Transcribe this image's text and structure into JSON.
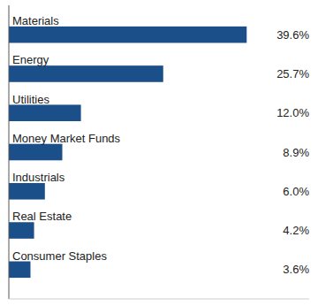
{
  "chart_data": {
    "type": "bar",
    "orientation": "horizontal",
    "categories": [
      "Materials",
      "Energy",
      "Utilities",
      "Money Market Funds",
      "Industrials",
      "Real Estate",
      "Consumer Staples"
    ],
    "values": [
      39.6,
      25.7,
      12.0,
      8.9,
      6.0,
      4.2,
      3.6
    ],
    "value_labels": [
      "39.6%",
      "25.7%",
      "12.0%",
      "8.9%",
      "6.0%",
      "4.2%",
      "3.6%"
    ],
    "color": "#1a4f8a",
    "xlim": [
      0,
      50
    ],
    "tick_labels": false,
    "data_labels": true
  }
}
